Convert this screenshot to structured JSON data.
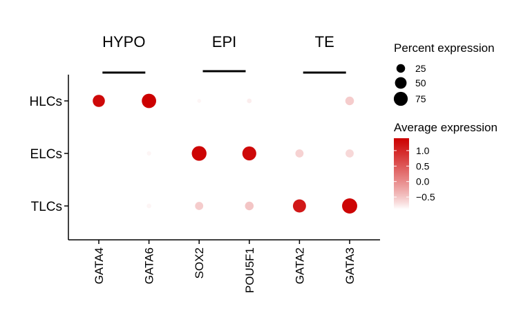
{
  "chart_data": {
    "type": "dot",
    "genes": [
      "GATA4",
      "GATA6",
      "SOX2",
      "POU5F1",
      "GATA2",
      "GATA3"
    ],
    "cell_types": [
      "HLCs",
      "ELCs",
      "TLCs"
    ],
    "groups": [
      {
        "label": "HYPO",
        "genes": [
          "GATA4",
          "GATA6"
        ]
      },
      {
        "label": "EPI",
        "genes": [
          "SOX2",
          "POU5F1"
        ]
      },
      {
        "label": "TE",
        "genes": [
          "GATA2",
          "GATA3"
        ]
      }
    ],
    "points": [
      {
        "cell_type": "HLCs",
        "gene": "GATA4",
        "percent": 55,
        "avg_expr": 1.3
      },
      {
        "cell_type": "HLCs",
        "gene": "GATA6",
        "percent": 80,
        "avg_expr": 1.4
      },
      {
        "cell_type": "HLCs",
        "gene": "SOX2",
        "percent": 3,
        "avg_expr": -0.85
      },
      {
        "cell_type": "HLCs",
        "gene": "POU5F1",
        "percent": 5,
        "avg_expr": -0.8
      },
      {
        "cell_type": "HLCs",
        "gene": "GATA2",
        "percent": 0,
        "avg_expr": -0.9
      },
      {
        "cell_type": "HLCs",
        "gene": "GATA3",
        "percent": 25,
        "avg_expr": -0.55
      },
      {
        "cell_type": "ELCs",
        "gene": "GATA4",
        "percent": 1,
        "avg_expr": -0.9
      },
      {
        "cell_type": "ELCs",
        "gene": "GATA6",
        "percent": 4,
        "avg_expr": -0.85
      },
      {
        "cell_type": "ELCs",
        "gene": "SOX2",
        "percent": 85,
        "avg_expr": 1.35
      },
      {
        "cell_type": "ELCs",
        "gene": "POU5F1",
        "percent": 75,
        "avg_expr": 1.3
      },
      {
        "cell_type": "ELCs",
        "gene": "GATA2",
        "percent": 22,
        "avg_expr": -0.6
      },
      {
        "cell_type": "ELCs",
        "gene": "GATA3",
        "percent": 22,
        "avg_expr": -0.65
      },
      {
        "cell_type": "TLCs",
        "gene": "GATA4",
        "percent": 1,
        "avg_expr": -0.9
      },
      {
        "cell_type": "TLCs",
        "gene": "GATA6",
        "percent": 5,
        "avg_expr": -0.85
      },
      {
        "cell_type": "TLCs",
        "gene": "SOX2",
        "percent": 22,
        "avg_expr": -0.55
      },
      {
        "cell_type": "TLCs",
        "gene": "POU5F1",
        "percent": 25,
        "avg_expr": -0.5
      },
      {
        "cell_type": "TLCs",
        "gene": "GATA2",
        "percent": 65,
        "avg_expr": 1.15
      },
      {
        "cell_type": "TLCs",
        "gene": "GATA3",
        "percent": 90,
        "avg_expr": 1.35
      }
    ],
    "size_legend": {
      "title": "Percent expression",
      "values": [
        25,
        50,
        75
      ]
    },
    "color_legend": {
      "title": "Average expression",
      "ticks": [
        1.0,
        0.5,
        0.0,
        -0.5
      ],
      "tick_labels": [
        "1.0",
        "0.5",
        "0.0",
        "−0.5"
      ],
      "range": [
        -0.9,
        1.4
      ],
      "low_color": "#ffffff",
      "high_color": "#cc0000"
    }
  }
}
